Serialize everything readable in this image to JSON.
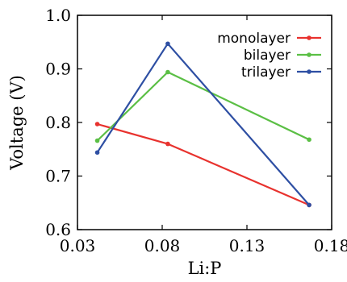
{
  "chart_data": {
    "type": "line",
    "title": "",
    "xlabel": "Li:P",
    "ylabel": "Voltage (V)",
    "xlim": [
      0.03,
      0.18
    ],
    "ylim": [
      0.6,
      1.0
    ],
    "xticks": [
      "0.03",
      "0.08",
      "0.13",
      "0.18"
    ],
    "yticks": [
      "0.6",
      "0.7",
      "0.8",
      "0.9",
      "1.0"
    ],
    "grid": false,
    "legend_position": "top-right",
    "series": [
      {
        "name": "monolayer",
        "color": "#e8322e",
        "x": [
          0.0417,
          0.0833,
          0.1667
        ],
        "y": [
          0.797,
          0.76,
          0.646
        ]
      },
      {
        "name": "bilayer",
        "color": "#5bbf45",
        "x": [
          0.0417,
          0.0833,
          0.1667
        ],
        "y": [
          0.766,
          0.894,
          0.768
        ]
      },
      {
        "name": "trilayer",
        "color": "#2e4fa3",
        "x": [
          0.0417,
          0.0833,
          0.1667
        ],
        "y": [
          0.744,
          0.947,
          0.646
        ]
      }
    ]
  }
}
